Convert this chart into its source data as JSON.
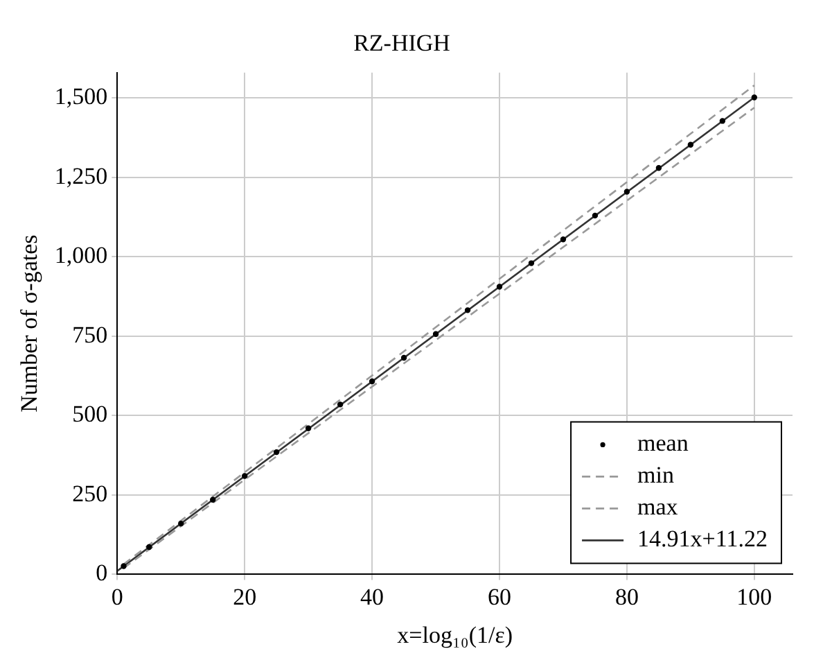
{
  "chart_data": {
    "type": "scatter",
    "title": "RZ-HIGH",
    "xlabel": "x=log₁₀(1/ε)",
    "ylabel": "Number of σ-gates",
    "xlim": [
      0,
      106
    ],
    "xticks": [
      0,
      20,
      40,
      60,
      80,
      100
    ],
    "ylim": [
      0,
      1580
    ],
    "yticks": [
      0,
      250,
      500,
      750,
      {
        "value": 1000,
        "label": "1,000"
      },
      {
        "value": 1250,
        "label": "1,250"
      },
      {
        "value": 1500,
        "label": "1,500"
      }
    ],
    "grid": true,
    "legend": "bottom right",
    "series": [
      {
        "name": "mean",
        "type": "scatter",
        "marker": "circle",
        "color": "#000000",
        "x": [
          1,
          5,
          10,
          15,
          20,
          25,
          30,
          35,
          40,
          45,
          50,
          55,
          60,
          65,
          70,
          75,
          80,
          85,
          90,
          95,
          100
        ],
        "values": [
          26,
          86,
          160,
          235,
          310,
          385,
          460,
          535,
          608,
          682,
          757,
          832,
          906,
          980,
          1055,
          1130,
          1205,
          1280,
          1353,
          1428,
          1502
        ]
      },
      {
        "name": "min",
        "type": "line",
        "line_style": "dashed",
        "marker": "none",
        "color": "#999999",
        "x": [
          1,
          100
        ],
        "values": [
          20,
          1470
        ]
      },
      {
        "name": "max",
        "type": "line",
        "line_style": "dashed",
        "marker": "none",
        "color": "#999999",
        "x": [
          1,
          100
        ],
        "values": [
          32,
          1540
        ]
      },
      {
        "name": "14.91x+11.22",
        "type": "line",
        "line_style": "solid",
        "marker": "none",
        "color": "#333333",
        "x": [
          0,
          100
        ],
        "values": [
          11,
          1502
        ]
      }
    ]
  }
}
